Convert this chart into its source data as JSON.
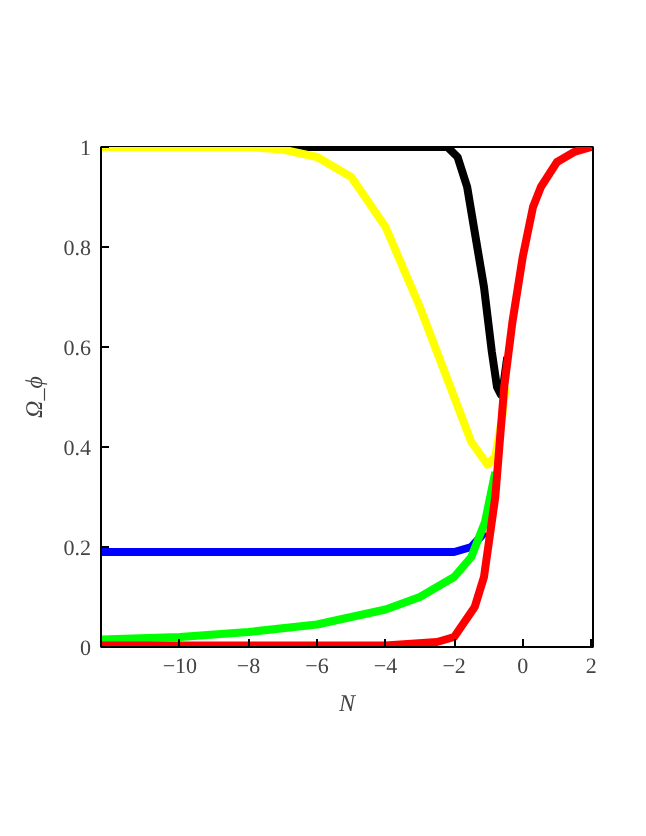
{
  "chart_data": {
    "type": "line",
    "xlabel": "N",
    "ylabel": "Ω_ϕ",
    "xlim": [
      -12.3,
      2.05
    ],
    "ylim": [
      0,
      1
    ],
    "xticks": [
      -10,
      -8,
      -6,
      -4,
      -2,
      0,
      2
    ],
    "yticks": [
      0,
      0.2,
      0.4,
      0.6,
      0.8,
      1
    ],
    "grid": false,
    "marker": "none",
    "line_style": "solid",
    "series": [
      {
        "color": "#000000",
        "x": [
          -12.3,
          -4,
          -2.2,
          -1.9,
          -1.62,
          -1.4,
          -1.13,
          -0.9,
          -0.75,
          -0.64,
          -0.55,
          -0.45
        ],
        "values": [
          1,
          1,
          1,
          0.98,
          0.92,
          0.83,
          0.72,
          0.59,
          0.52,
          0.505,
          0.53,
          0.58
        ]
      },
      {
        "color": "#ffff00",
        "x": [
          -12.3,
          -8,
          -7,
          -6,
          -5,
          -4,
          -3,
          -2,
          -1.5,
          -1.03,
          -0.8,
          -0.6,
          -0.5
        ],
        "values": [
          1,
          1,
          0.995,
          0.98,
          0.94,
          0.84,
          0.68,
          0.5,
          0.41,
          0.365,
          0.38,
          0.46,
          0.52
        ]
      },
      {
        "color": "#0000ff",
        "x": [
          -12.3,
          -4,
          -2,
          -1.5,
          -1.1
        ],
        "values": [
          0.19,
          0.19,
          0.19,
          0.2,
          0.23
        ]
      },
      {
        "color": "#00ff00",
        "x": [
          -12.3,
          -10,
          -8,
          -6,
          -4,
          -3,
          -2,
          -1.5,
          -1.1,
          -0.8
        ],
        "values": [
          0.015,
          0.02,
          0.03,
          0.045,
          0.075,
          0.1,
          0.14,
          0.18,
          0.25,
          0.35
        ]
      },
      {
        "color": "#ff0000",
        "x": [
          -12.3,
          -4,
          -2.5,
          -2,
          -1.8,
          -1.4,
          -1.13,
          -0.8,
          -0.54,
          -0.3,
          0,
          0.3,
          0.53,
          1,
          1.5,
          2
        ],
        "values": [
          0.003,
          0.003,
          0.01,
          0.02,
          0.04,
          0.08,
          0.14,
          0.3,
          0.52,
          0.65,
          0.78,
          0.88,
          0.92,
          0.97,
          0.99,
          1
        ]
      }
    ]
  }
}
